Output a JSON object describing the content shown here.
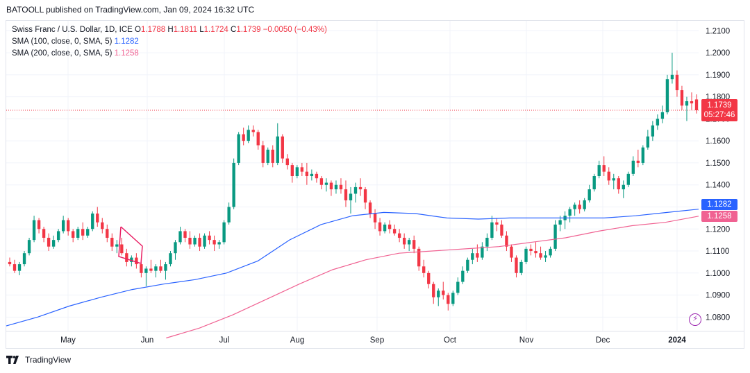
{
  "header": {
    "published": "BATOOLL published on TradingView.com, Jan 09, 2024 16:32 UTC"
  },
  "legend": {
    "symbol": "Swiss Franc / U.S. Dollar, 1D, ICE",
    "o_label": "O",
    "o_value": "1.1788",
    "h_label": "H",
    "h_value": "1.1811",
    "l_label": "L",
    "l_value": "1.1724",
    "c_label": "C",
    "c_value": "1.1739",
    "change": "−0.0050 (−0.43%)",
    "sma100_label": "SMA (100, close, 0, SMA, 5)",
    "sma100_value": "1.1282",
    "sma200_label": "SMA (200, close, 0, SMA, 5)",
    "sma200_value": "1.1258"
  },
  "price_tags": {
    "last_price": "1.1739",
    "countdown": "05:27:46",
    "sma100": "1.1282",
    "sma200": "1.1258"
  },
  "footer": {
    "brand": "TradingView"
  },
  "icons": {
    "bolt": "lightning-icon"
  },
  "colors": {
    "up": "#089981",
    "down": "#f23645",
    "sma100": "#2962ff",
    "sma200": "#f06292",
    "grid": "#f0f3fa"
  },
  "chart_data": {
    "type": "candlestick",
    "y_ticks": [
      "1.2100",
      "1.2000",
      "1.1900",
      "1.1800",
      "1.1700",
      "1.1600",
      "1.1500",
      "1.1400",
      "1.1300",
      "1.1200",
      "1.1100",
      "1.1000",
      "1.0900",
      "1.0800"
    ],
    "ylim": [
      1.0735,
      1.2145
    ],
    "x_labels": [
      "May",
      "Jun",
      "Jul",
      "Aug",
      "Sep",
      "Oct",
      "Nov",
      "Dec",
      "2024"
    ],
    "grid": true,
    "series": [
      {
        "name": "Swiss Franc / U.S. Dollar",
        "points": [
          [
            1.105,
            1.107,
            1.103,
            1.104
          ],
          [
            1.104,
            1.106,
            1.1,
            1.101
          ],
          [
            1.101,
            1.105,
            1.099,
            1.104
          ],
          [
            1.104,
            1.11,
            1.103,
            1.109
          ],
          [
            1.109,
            1.116,
            1.108,
            1.115
          ],
          [
            1.115,
            1.126,
            1.114,
            1.124
          ],
          [
            1.124,
            1.125,
            1.118,
            1.12
          ],
          [
            1.12,
            1.121,
            1.114,
            1.116
          ],
          [
            1.116,
            1.118,
            1.11,
            1.112
          ],
          [
            1.112,
            1.117,
            1.111,
            1.115
          ],
          [
            1.115,
            1.12,
            1.114,
            1.119
          ],
          [
            1.119,
            1.126,
            1.118,
            1.124
          ],
          [
            1.124,
            1.125,
            1.117,
            1.119
          ],
          [
            1.119,
            1.12,
            1.114,
            1.116
          ],
          [
            1.116,
            1.121,
            1.115,
            1.12
          ],
          [
            1.12,
            1.123,
            1.115,
            1.117
          ],
          [
            1.117,
            1.121,
            1.116,
            1.12
          ],
          [
            1.12,
            1.128,
            1.119,
            1.127
          ],
          [
            1.127,
            1.13,
            1.121,
            1.123
          ],
          [
            1.123,
            1.125,
            1.118,
            1.12
          ],
          [
            1.12,
            1.122,
            1.114,
            1.116
          ],
          [
            1.116,
            1.118,
            1.11,
            1.112
          ],
          [
            1.112,
            1.115,
            1.109,
            1.113
          ],
          [
            1.113,
            1.116,
            1.108,
            1.109
          ],
          [
            1.109,
            1.111,
            1.103,
            1.105
          ],
          [
            1.105,
            1.108,
            1.103,
            1.107
          ],
          [
            1.107,
            1.109,
            1.102,
            1.104
          ],
          [
            1.104,
            1.105,
            1.098,
            1.1
          ],
          [
            1.1,
            1.103,
            1.094,
            1.102
          ],
          [
            1.102,
            1.106,
            1.1,
            1.101
          ],
          [
            1.101,
            1.104,
            1.098,
            1.103
          ],
          [
            1.103,
            1.106,
            1.1,
            1.101
          ],
          [
            1.101,
            1.105,
            1.097,
            1.104
          ],
          [
            1.104,
            1.11,
            1.103,
            1.109
          ],
          [
            1.109,
            1.115,
            1.106,
            1.114
          ],
          [
            1.114,
            1.121,
            1.113,
            1.119
          ],
          [
            1.119,
            1.12,
            1.114,
            1.116
          ],
          [
            1.116,
            1.119,
            1.111,
            1.113
          ],
          [
            1.113,
            1.117,
            1.112,
            1.116
          ],
          [
            1.116,
            1.118,
            1.11,
            1.112
          ],
          [
            1.112,
            1.118,
            1.111,
            1.117
          ],
          [
            1.117,
            1.119,
            1.113,
            1.115
          ],
          [
            1.115,
            1.117,
            1.11,
            1.113
          ],
          [
            1.113,
            1.115,
            1.111,
            1.114
          ],
          [
            1.114,
            1.124,
            1.113,
            1.123
          ],
          [
            1.123,
            1.132,
            1.122,
            1.13
          ],
          [
            1.13,
            1.152,
            1.129,
            1.15
          ],
          [
            1.15,
            1.164,
            1.149,
            1.163
          ],
          [
            1.163,
            1.166,
            1.158,
            1.16
          ],
          [
            1.16,
            1.167,
            1.159,
            1.165
          ],
          [
            1.165,
            1.167,
            1.162,
            1.164
          ],
          [
            1.164,
            1.165,
            1.156,
            1.158
          ],
          [
            1.158,
            1.16,
            1.148,
            1.15
          ],
          [
            1.15,
            1.157,
            1.149,
            1.156
          ],
          [
            1.156,
            1.158,
            1.148,
            1.15
          ],
          [
            1.15,
            1.168,
            1.149,
            1.162
          ],
          [
            1.162,
            1.163,
            1.15,
            1.152
          ],
          [
            1.152,
            1.154,
            1.147,
            1.149
          ],
          [
            1.149,
            1.15,
            1.141,
            1.144
          ],
          [
            1.144,
            1.149,
            1.143,
            1.148
          ],
          [
            1.148,
            1.15,
            1.144,
            1.146
          ],
          [
            1.146,
            1.15,
            1.14,
            1.144
          ],
          [
            1.144,
            1.147,
            1.142,
            1.145
          ],
          [
            1.145,
            1.146,
            1.141,
            1.143
          ],
          [
            1.143,
            1.144,
            1.138,
            1.14
          ],
          [
            1.14,
            1.143,
            1.137,
            1.141
          ],
          [
            1.141,
            1.142,
            1.135,
            1.138
          ],
          [
            1.138,
            1.142,
            1.136,
            1.14
          ],
          [
            1.14,
            1.143,
            1.136,
            1.138
          ],
          [
            1.138,
            1.142,
            1.13,
            1.133
          ],
          [
            1.133,
            1.139,
            1.127,
            1.136
          ],
          [
            1.136,
            1.141,
            1.132,
            1.139
          ],
          [
            1.139,
            1.143,
            1.135,
            1.138
          ],
          [
            1.138,
            1.139,
            1.129,
            1.132
          ],
          [
            1.132,
            1.133,
            1.125,
            1.127
          ],
          [
            1.127,
            1.129,
            1.12,
            1.123
          ],
          [
            1.123,
            1.125,
            1.117,
            1.119
          ],
          [
            1.119,
            1.123,
            1.118,
            1.122
          ],
          [
            1.122,
            1.124,
            1.118,
            1.12
          ],
          [
            1.12,
            1.122,
            1.117,
            1.118
          ],
          [
            1.118,
            1.12,
            1.114,
            1.116
          ],
          [
            1.116,
            1.118,
            1.111,
            1.113
          ],
          [
            1.113,
            1.116,
            1.11,
            1.115
          ],
          [
            1.115,
            1.117,
            1.109,
            1.111
          ],
          [
            1.111,
            1.112,
            1.101,
            1.103
          ],
          [
            1.103,
            1.106,
            1.098,
            1.1
          ],
          [
            1.1,
            1.101,
            1.093,
            1.095
          ],
          [
            1.095,
            1.096,
            1.086,
            1.089
          ],
          [
            1.089,
            1.093,
            1.085,
            1.092
          ],
          [
            1.092,
            1.096,
            1.088,
            1.09
          ],
          [
            1.09,
            1.091,
            1.083,
            1.086
          ],
          [
            1.086,
            1.092,
            1.085,
            1.091
          ],
          [
            1.091,
            1.098,
            1.09,
            1.096
          ],
          [
            1.096,
            1.103,
            1.095,
            1.101
          ],
          [
            1.101,
            1.107,
            1.1,
            1.106
          ],
          [
            1.106,
            1.111,
            1.104,
            1.109
          ],
          [
            1.109,
            1.113,
            1.105,
            1.107
          ],
          [
            1.107,
            1.114,
            1.106,
            1.112
          ],
          [
            1.112,
            1.118,
            1.11,
            1.116
          ],
          [
            1.116,
            1.126,
            1.115,
            1.123
          ],
          [
            1.123,
            1.125,
            1.119,
            1.122
          ],
          [
            1.122,
            1.124,
            1.116,
            1.117
          ],
          [
            1.117,
            1.119,
            1.11,
            1.112
          ],
          [
            1.112,
            1.113,
            1.105,
            1.107
          ],
          [
            1.107,
            1.108,
            1.098,
            1.1
          ],
          [
            1.1,
            1.106,
            1.099,
            1.105
          ],
          [
            1.105,
            1.112,
            1.104,
            1.111
          ],
          [
            1.111,
            1.113,
            1.108,
            1.11
          ],
          [
            1.11,
            1.114,
            1.107,
            1.109
          ],
          [
            1.109,
            1.112,
            1.106,
            1.107
          ],
          [
            1.107,
            1.11,
            1.105,
            1.108
          ],
          [
            1.108,
            1.112,
            1.107,
            1.111
          ],
          [
            1.111,
            1.124,
            1.11,
            1.122
          ],
          [
            1.122,
            1.126,
            1.119,
            1.124
          ],
          [
            1.124,
            1.128,
            1.12,
            1.126
          ],
          [
            1.126,
            1.13,
            1.123,
            1.129
          ],
          [
            1.129,
            1.132,
            1.126,
            1.131
          ],
          [
            1.131,
            1.133,
            1.127,
            1.129
          ],
          [
            1.129,
            1.134,
            1.128,
            1.133
          ],
          [
            1.133,
            1.14,
            1.132,
            1.138
          ],
          [
            1.138,
            1.145,
            1.137,
            1.144
          ],
          [
            1.144,
            1.151,
            1.143,
            1.149
          ],
          [
            1.149,
            1.153,
            1.144,
            1.146
          ],
          [
            1.146,
            1.148,
            1.14,
            1.142
          ],
          [
            1.142,
            1.145,
            1.138,
            1.143
          ],
          [
            1.143,
            1.144,
            1.136,
            1.138
          ],
          [
            1.138,
            1.142,
            1.134,
            1.14
          ],
          [
            1.14,
            1.146,
            1.139,
            1.145
          ],
          [
            1.145,
            1.153,
            1.144,
            1.151
          ],
          [
            1.151,
            1.156,
            1.148,
            1.15
          ],
          [
            1.15,
            1.158,
            1.149,
            1.157
          ],
          [
            1.157,
            1.165,
            1.156,
            1.162
          ],
          [
            1.162,
            1.169,
            1.16,
            1.167
          ],
          [
            1.167,
            1.172,
            1.165,
            1.17
          ],
          [
            1.17,
            1.176,
            1.168,
            1.173
          ],
          [
            1.173,
            1.19,
            1.172,
            1.188
          ],
          [
            1.188,
            1.2,
            1.186,
            1.19
          ],
          [
            1.19,
            1.192,
            1.18,
            1.183
          ],
          [
            1.183,
            1.185,
            1.174,
            1.176
          ],
          [
            1.176,
            1.18,
            1.169,
            1.178
          ],
          [
            1.178,
            1.182,
            1.174,
            1.177
          ],
          [
            1.1788,
            1.1811,
            1.1724,
            1.1739
          ]
        ]
      },
      {
        "name": "SMA (100, close, 0, SMA, 5)",
        "x_start": 0,
        "x_end": 1,
        "values": [
          1.076,
          1.08,
          1.085,
          1.089,
          1.0925,
          1.095,
          1.097,
          1.1,
          1.1055,
          1.115,
          1.122,
          1.126,
          1.1275,
          1.127,
          1.125,
          1.1245,
          1.125,
          1.125,
          1.125,
          1.125,
          1.126,
          1.1275,
          1.129
        ]
      },
      {
        "name": "SMA (200, close, 0, SMA, 5)",
        "x_start": 0.231,
        "x_end": 1,
        "values": [
          1.0705,
          1.075,
          1.081,
          1.088,
          1.095,
          1.1015,
          1.106,
          1.109,
          1.11,
          1.111,
          1.112,
          1.114,
          1.116,
          1.119,
          1.1215,
          1.123,
          1.1258
        ]
      }
    ]
  }
}
